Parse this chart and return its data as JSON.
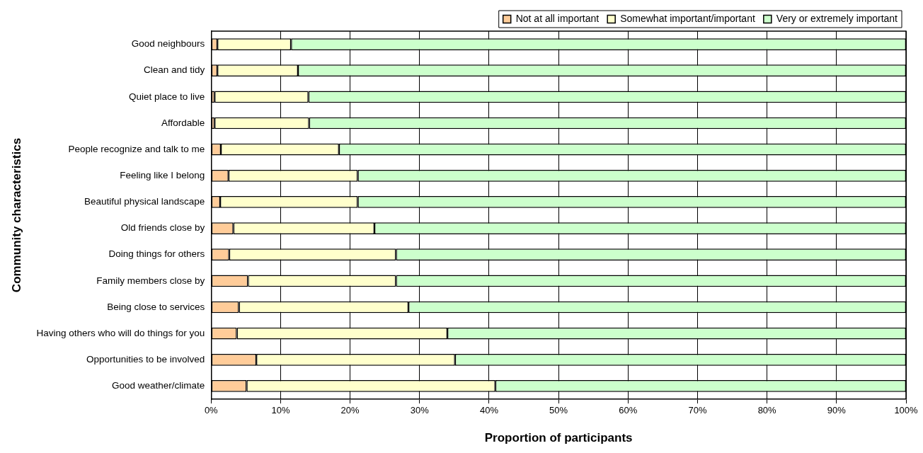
{
  "chart_data": {
    "type": "bar",
    "orientation": "horizontal",
    "stacked": true,
    "xlabel": "Proportion of participants",
    "ylabel": "Community characteristics",
    "categories": [
      "Good neighbours",
      "Clean and tidy",
      "Quiet place to live",
      "Affordable",
      "People recognize and talk to me",
      "Feeling like I belong",
      "Beautiful physical landscape",
      "Old friends close by",
      "Doing things for others",
      "Family members close by",
      "Being close to services",
      "Having others who will do things for you",
      "Opportunities to be involved",
      "Good weather/climate"
    ],
    "series": [
      {
        "name": "Not at all important",
        "color": "#ffcc99",
        "values": [
          0.9,
          0.9,
          0.5,
          0.5,
          1.4,
          2.5,
          1.3,
          3.2,
          2.6,
          5.3,
          4.0,
          3.7,
          6.5,
          5.1
        ]
      },
      {
        "name": "Somewhat important/important",
        "color": "#ffffcc",
        "values": [
          10.6,
          11.6,
          13.5,
          13.6,
          17.0,
          18.6,
          19.8,
          20.3,
          24.0,
          21.3,
          24.4,
          30.3,
          28.6,
          35.8
        ]
      },
      {
        "name": "Very or extremely important",
        "color": "#ccffcc",
        "values": [
          88.5,
          87.5,
          86.0,
          85.9,
          81.6,
          78.9,
          78.9,
          76.5,
          73.4,
          73.4,
          71.6,
          66.0,
          64.9,
          59.1
        ]
      }
    ],
    "xlim": [
      0,
      100
    ],
    "xticks": [
      {
        "value": 0,
        "label": "0%"
      },
      {
        "value": 10,
        "label": "10%"
      },
      {
        "value": 20,
        "label": "20%"
      },
      {
        "value": 30,
        "label": "30%"
      },
      {
        "value": 40,
        "label": "40%"
      },
      {
        "value": 50,
        "label": "50%"
      },
      {
        "value": 60,
        "label": "60%"
      },
      {
        "value": 70,
        "label": "70%"
      },
      {
        "value": 80,
        "label": "80%"
      },
      {
        "value": 90,
        "label": "90%"
      },
      {
        "value": 100,
        "label": "100%"
      }
    ],
    "grid": "x",
    "legend": "top"
  }
}
